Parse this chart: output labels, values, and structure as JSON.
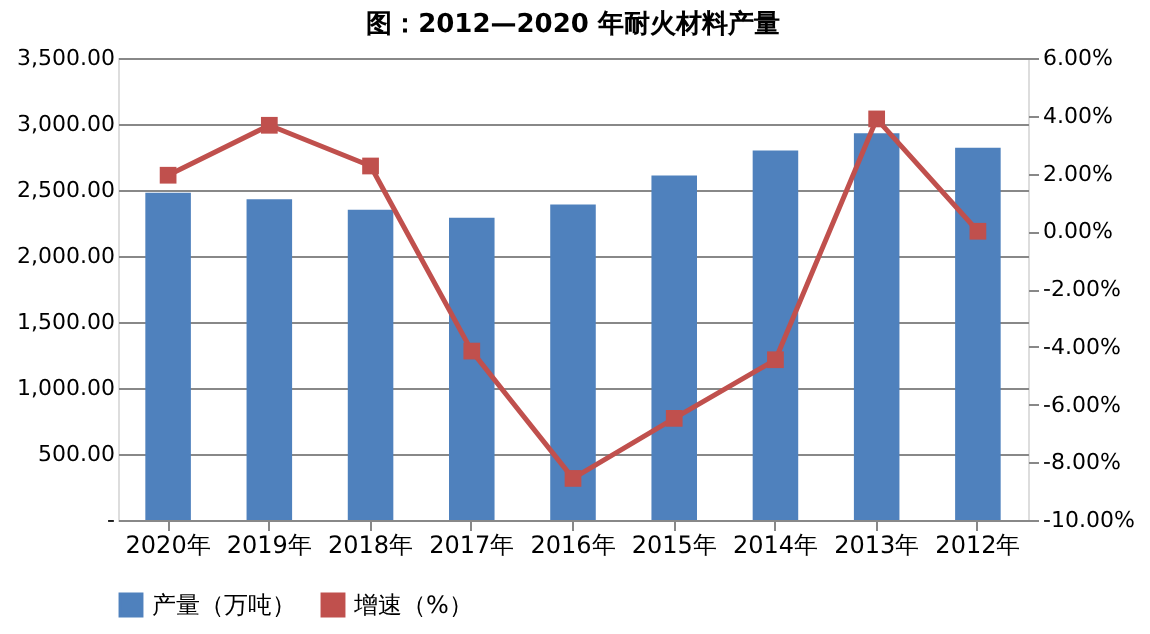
{
  "chart_data": {
    "type": "bar",
    "title": "图：2012—2020 年耐火材料产量",
    "categories": [
      "2020年",
      "2019年",
      "2018年",
      "2017年",
      "2016年",
      "2015年",
      "2014年",
      "2013年",
      "2012年"
    ],
    "series": [
      {
        "name": "产量（万吨）",
        "color": "#4f81bd",
        "values": [
          2480,
          2430,
          2350,
          2290,
          2390,
          2610,
          2800,
          2930,
          2820
        ]
      },
      {
        "name": "增速（%）",
        "type": "line",
        "axis": "y2",
        "color": "#c0504d",
        "marker": "square",
        "values": [
          1.94,
          3.67,
          2.26,
          -4.15,
          -8.56,
          -6.48,
          -4.45,
          3.89,
          0.0
        ]
      }
    ],
    "ylim": [
      0,
      3500
    ],
    "yticks": [
      {
        "value": 0,
        "label": "-"
      },
      {
        "value": 500,
        "label": "500.00"
      },
      {
        "value": 1000,
        "label": "1,000.00"
      },
      {
        "value": 1500,
        "label": "1,500.00"
      },
      {
        "value": 2000,
        "label": "2,000.00"
      },
      {
        "value": 2500,
        "label": "2,500.00"
      },
      {
        "value": 3000,
        "label": "3,000.00"
      },
      {
        "value": 3500,
        "label": "3,500.00"
      }
    ],
    "y2lim": [
      -10,
      6
    ],
    "y2ticks": [
      {
        "value": -10,
        "label": "-10.00%"
      },
      {
        "value": -8,
        "label": "-8.00%"
      },
      {
        "value": -6,
        "label": "-6.00%"
      },
      {
        "value": -4,
        "label": "-4.00%"
      },
      {
        "value": -2,
        "label": "-2.00%"
      },
      {
        "value": 0,
        "label": "0.00%"
      },
      {
        "value": 2,
        "label": "2.00%"
      },
      {
        "value": 4,
        "label": "4.00%"
      },
      {
        "value": 6,
        "label": "6.00%"
      }
    ],
    "grid": "y",
    "legend": "bottom"
  }
}
